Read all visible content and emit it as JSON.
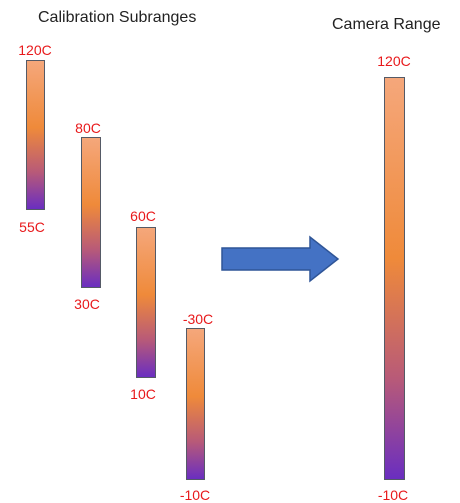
{
  "titles": {
    "left": "Calibration Subranges",
    "right": "Camera Range"
  },
  "subranges": [
    {
      "top": "120C",
      "bottom": "55C"
    },
    {
      "top": "80C",
      "bottom": "30C"
    },
    {
      "top": "60C",
      "bottom": "10C"
    },
    {
      "top": "-30C",
      "bottom": "-10C"
    }
  ],
  "camera_range": {
    "top": "120C",
    "bottom": "-10C"
  },
  "colors": {
    "label": "#e8191b",
    "arrow": "#4472c4",
    "gradient_top": "#f5a77b",
    "gradient_mid": "#ef8a3a",
    "gradient_bottom": "#6a2ec0"
  }
}
